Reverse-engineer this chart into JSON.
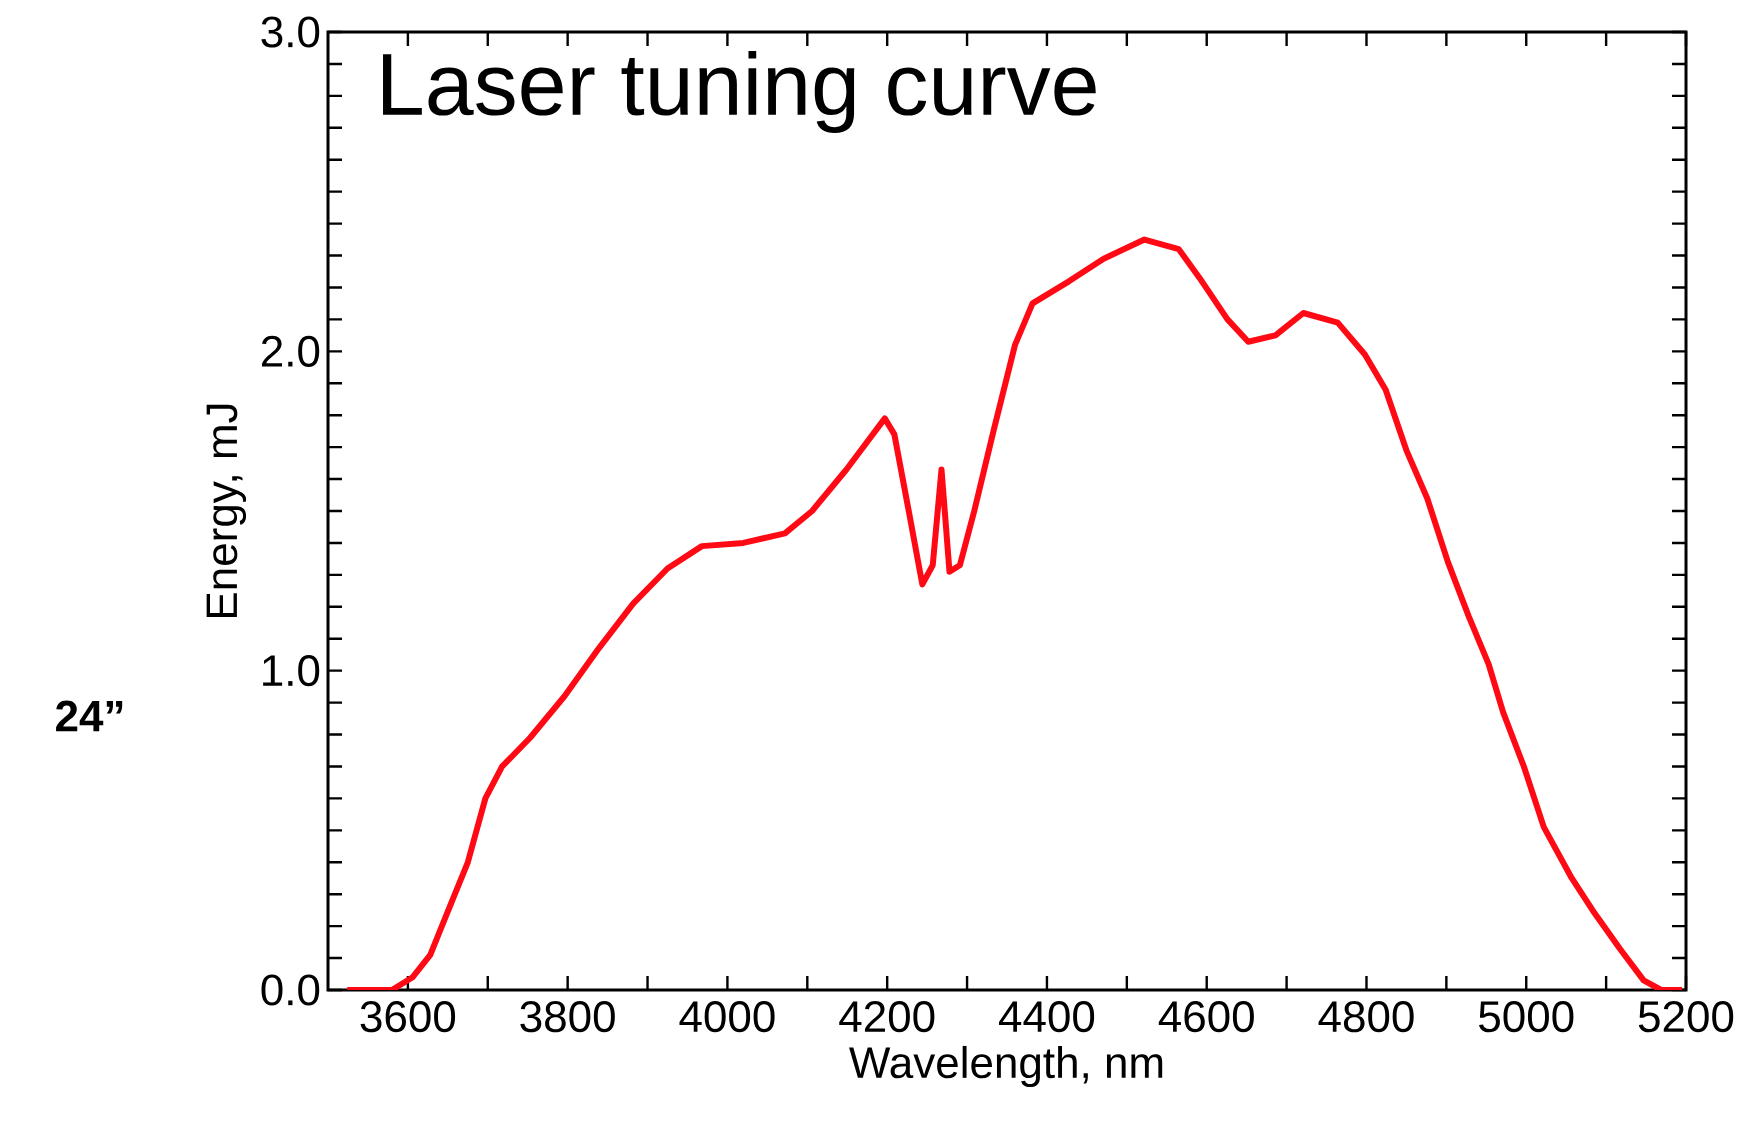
{
  "chart_data": {
    "type": "line",
    "title": "Laser tuning curve",
    "xlabel": "Wavelength, nm",
    "ylabel": "Energy, mJ",
    "annotations": [
      "24”"
    ],
    "color": "#ff0a14",
    "line_style": "solid",
    "xlim": [
      3500,
      5200
    ],
    "ylim": [
      0,
      3
    ],
    "xticks": [
      3600,
      {
        "value": 3700,
        "label": null
      },
      3800,
      {
        "value": 3900,
        "label": null
      },
      4000,
      {
        "value": 4100,
        "label": null
      },
      4200,
      {
        "value": 4300,
        "label": null
      },
      4400,
      {
        "value": 4500,
        "label": null
      },
      4600,
      {
        "value": 4700,
        "label": null
      },
      4800,
      {
        "value": 4900,
        "label": null
      },
      5000,
      {
        "value": 5100,
        "label": null
      },
      5200
    ],
    "yticks": [
      {
        "value": 0,
        "label": "0.0"
      },
      {
        "value": 0.1,
        "label": null
      },
      {
        "value": 0.2,
        "label": null
      },
      {
        "value": 0.3,
        "label": null
      },
      {
        "value": 0.4,
        "label": null
      },
      {
        "value": 0.5,
        "label": null
      },
      {
        "value": 0.6,
        "label": null
      },
      {
        "value": 0.7,
        "label": null
      },
      {
        "value": 0.8,
        "label": null
      },
      {
        "value": 0.9,
        "label": null
      },
      {
        "value": 1,
        "label": "1.0"
      },
      {
        "value": 1.1,
        "label": null
      },
      {
        "value": 1.2,
        "label": null
      },
      {
        "value": 1.3,
        "label": null
      },
      {
        "value": 1.4,
        "label": null
      },
      {
        "value": 1.5,
        "label": null
      },
      {
        "value": 1.6,
        "label": null
      },
      {
        "value": 1.7,
        "label": null
      },
      {
        "value": 1.8,
        "label": null
      },
      {
        "value": 1.9,
        "label": null
      },
      {
        "value": 2,
        "label": "2.0"
      },
      {
        "value": 2.1,
        "label": null
      },
      {
        "value": 2.2,
        "label": null
      },
      {
        "value": 2.3,
        "label": null
      },
      {
        "value": 2.4,
        "label": null
      },
      {
        "value": 2.5,
        "label": null
      },
      {
        "value": 2.6,
        "label": null
      },
      {
        "value": 2.7,
        "label": null
      },
      {
        "value": 2.8,
        "label": null
      },
      {
        "value": 2.9,
        "label": null
      },
      {
        "value": 3,
        "label": "3.0"
      }
    ],
    "x": [
      3524,
      3580,
      3606,
      3628,
      3649,
      3675,
      3697,
      3718,
      3753,
      3796,
      3839,
      3882,
      3925,
      3968,
      4020,
      4072,
      4106,
      4149,
      4197,
      4209,
      4227,
      4244,
      4257,
      4268,
      4278,
      4291,
      4309,
      4334,
      4360,
      4382,
      4428,
      4471,
      4522,
      4565,
      4591,
      4626,
      4652,
      4686,
      4721,
      4764,
      4798,
      4824,
      4850,
      4876,
      4902,
      4928,
      4953,
      4971,
      4997,
      5022,
      5057,
      5083,
      5117,
      5147,
      5169,
      5195
    ],
    "values": [
      0.0,
      0.0,
      0.04,
      0.11,
      0.24,
      0.4,
      0.6,
      0.7,
      0.79,
      0.92,
      1.07,
      1.21,
      1.32,
      1.39,
      1.4,
      1.43,
      1.5,
      1.63,
      1.79,
      1.74,
      1.5,
      1.27,
      1.33,
      1.63,
      1.31,
      1.33,
      1.5,
      1.76,
      2.02,
      2.15,
      2.22,
      2.29,
      2.35,
      2.32,
      2.23,
      2.1,
      2.03,
      2.05,
      2.12,
      2.09,
      1.99,
      1.88,
      1.69,
      1.54,
      1.34,
      1.17,
      1.02,
      0.87,
      0.7,
      0.51,
      0.35,
      0.25,
      0.13,
      0.03,
      0.0,
      0.0
    ]
  }
}
